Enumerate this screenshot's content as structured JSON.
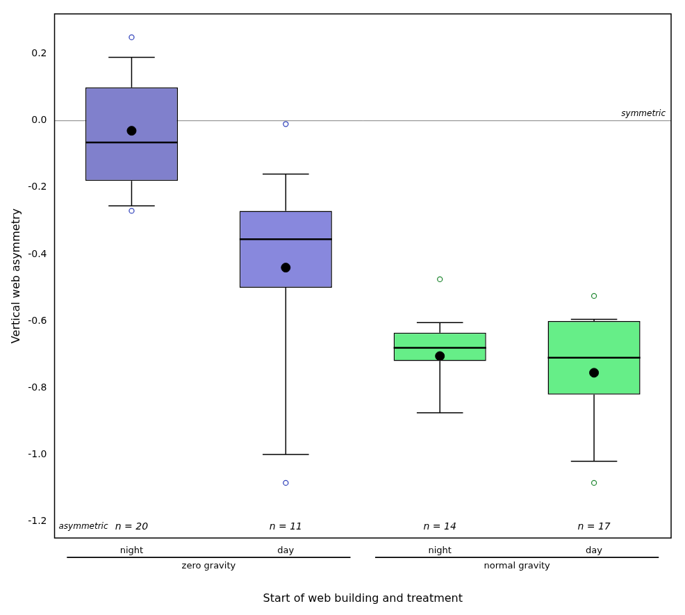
{
  "chart_data": {
    "type": "box",
    "ylabel": "Vertical web asymmetry",
    "xlabel": "Start of web building and treatment",
    "boxes": [
      {
        "category": "night",
        "group": "zero gravity",
        "q1": -0.18,
        "median": -0.065,
        "q3": 0.1,
        "whisker_low": -0.255,
        "whisker_high": 0.19,
        "mean": -0.03,
        "fliers": [
          0.25,
          -0.27
        ],
        "color": "#8080cc",
        "flier_color": "#3344bb",
        "n": "n = 20"
      },
      {
        "category": "day",
        "group": "zero gravity",
        "q1": -0.5,
        "median": -0.355,
        "q3": -0.27,
        "whisker_low": -1.0,
        "whisker_high": -0.16,
        "mean": -0.44,
        "fliers": [
          -0.01,
          -1.085
        ],
        "color": "#8888dd",
        "flier_color": "#3344bb",
        "n": "n = 11"
      },
      {
        "category": "night",
        "group": "normal gravity",
        "q1": -0.72,
        "median": -0.68,
        "q3": -0.635,
        "whisker_low": -0.875,
        "whisker_high": -0.605,
        "mean": -0.705,
        "fliers": [
          -0.475
        ],
        "color": "#66ee88",
        "flier_color": "#228833",
        "n": "n = 14"
      },
      {
        "category": "day",
        "group": "normal gravity",
        "q1": -0.82,
        "median": -0.71,
        "q3": -0.6,
        "whisker_low": -1.02,
        "whisker_high": -0.595,
        "mean": -0.755,
        "fliers": [
          -0.525,
          -1.085
        ],
        "color": "#66ee88",
        "flier_color": "#228833",
        "n": "n = 17"
      }
    ],
    "hline_y": 0,
    "annotations": [
      "symmetric",
      "asymmetric"
    ],
    "ylim": [
      -1.25,
      0.32
    ],
    "yticks": [
      0.2,
      {
        "value": 0,
        "label": "0.0"
      },
      -0.2,
      -0.4,
      -0.6,
      -0.8,
      {
        "value": -1,
        "label": "-1.0"
      },
      -1.2
    ],
    "grid": false
  }
}
